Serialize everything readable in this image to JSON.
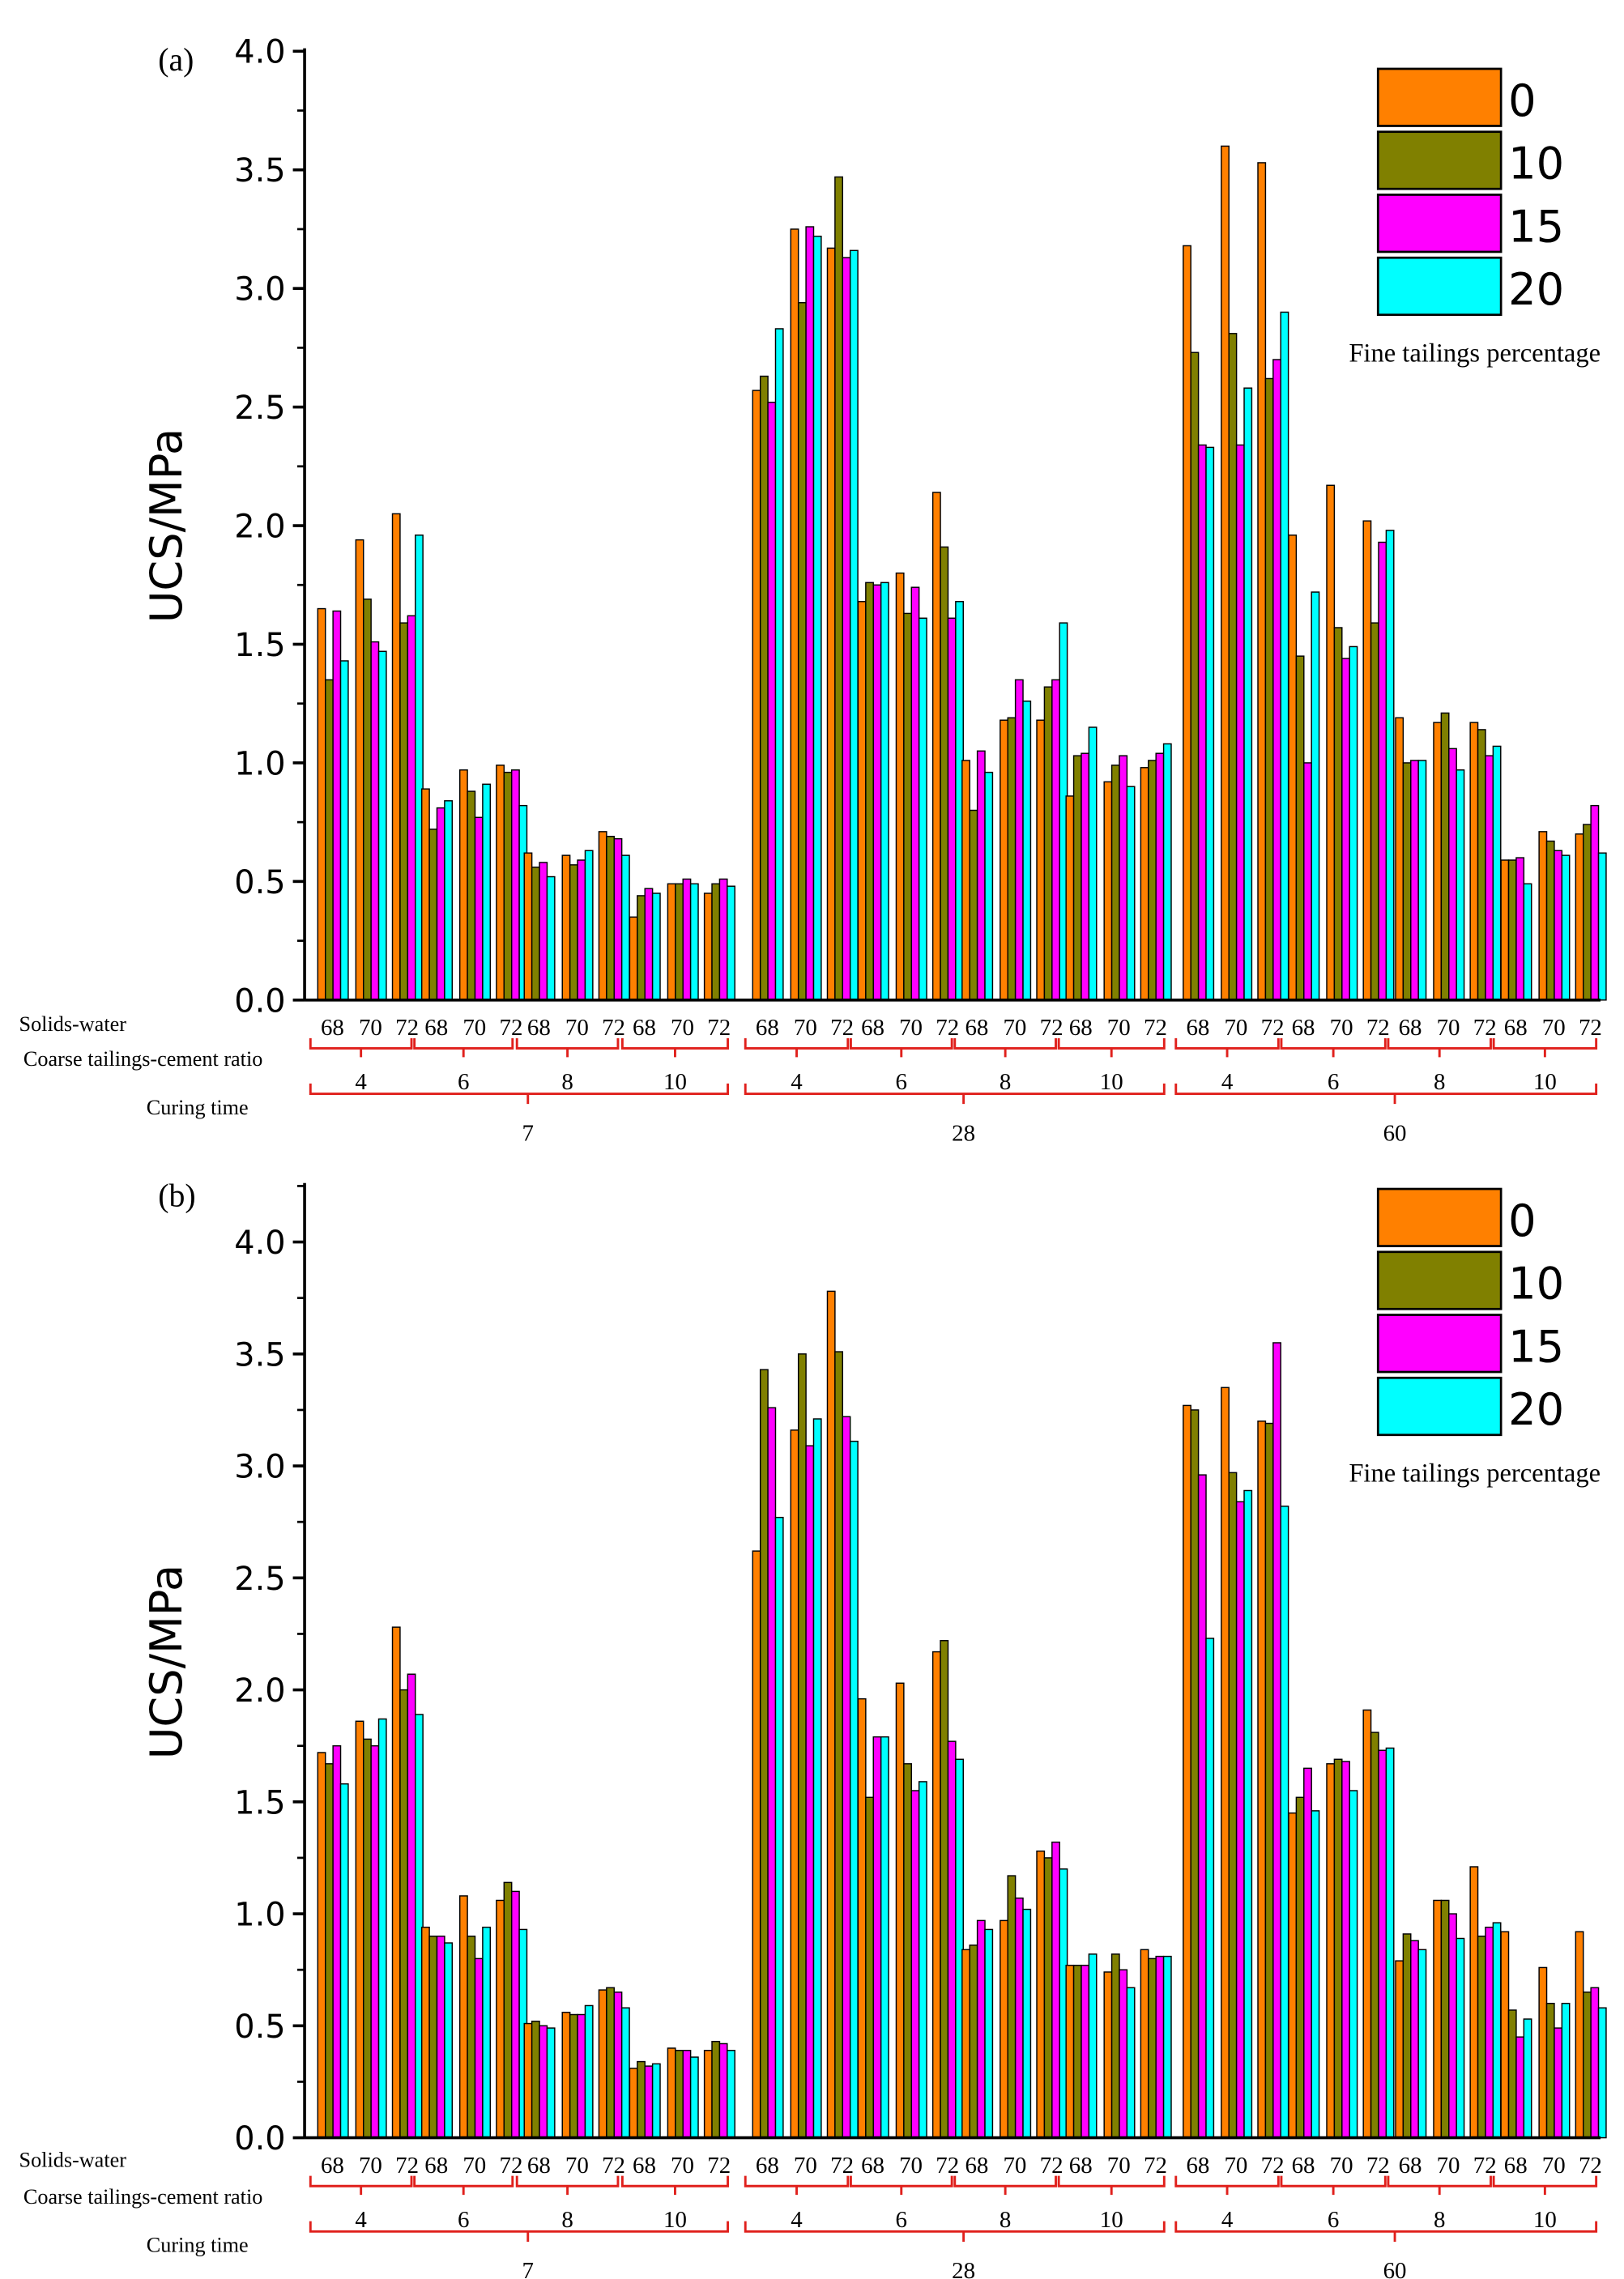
{
  "figure": {
    "shared_labels": {
      "solids_water_label": "Solids-water",
      "ratio_label": "Coarse tailings-cement ratio",
      "curing_label": "Curing time",
      "legend_caption": "Fine tailings percentage"
    },
    "x_hierarchy": {
      "curing_times": [
        "7",
        "28",
        "60"
      ],
      "ratios": [
        "4",
        "6",
        "8",
        "10"
      ],
      "solids_water": [
        "68",
        "70",
        "72"
      ]
    },
    "series_colors": {
      "0": "#FF8000",
      "10": "#808000",
      "15": "#FF00FF",
      "20": "#00FFFF"
    }
  },
  "chart_data": [
    {
      "type": "bar",
      "panel_label": "(a)",
      "ylabel": "UCS/MPa",
      "ylim": [
        0,
        4.0
      ],
      "yticks": [
        "0.0",
        "0.5",
        "1.0",
        "1.5",
        "2.0",
        "2.5",
        "3.0",
        "3.5",
        "4.0"
      ],
      "legend": {
        "title": "Fine tailings percentage",
        "entries": [
          "0",
          "10",
          "15",
          "20"
        ],
        "position": "top-right"
      },
      "grouping": "curing time > coarse tailings-cement ratio > solids-water",
      "series": [
        {
          "name": "0",
          "values": [
            1.65,
            1.94,
            2.05,
            0.89,
            0.97,
            0.99,
            0.62,
            0.61,
            0.71,
            0.35,
            0.49,
            0.45,
            2.57,
            3.25,
            3.17,
            1.68,
            1.8,
            2.14,
            1.01,
            1.18,
            1.18,
            0.86,
            0.92,
            0.98,
            3.18,
            3.6,
            3.53,
            1.96,
            2.17,
            2.02,
            1.19,
            1.17,
            1.17,
            0.59,
            0.71,
            0.7
          ]
        },
        {
          "name": "10",
          "values": [
            1.35,
            1.69,
            1.59,
            0.72,
            0.88,
            0.96,
            0.56,
            0.57,
            0.69,
            0.44,
            0.49,
            0.49,
            2.63,
            2.94,
            3.47,
            1.76,
            1.63,
            1.91,
            0.8,
            1.19,
            1.32,
            1.03,
            0.99,
            1.01,
            2.73,
            2.81,
            2.62,
            1.45,
            1.57,
            1.59,
            1.0,
            1.21,
            1.14,
            0.59,
            0.67,
            0.74
          ]
        },
        {
          "name": "15",
          "values": [
            1.64,
            1.51,
            1.62,
            0.81,
            0.77,
            0.97,
            0.58,
            0.59,
            0.68,
            0.47,
            0.51,
            0.51,
            2.52,
            3.26,
            3.13,
            1.75,
            1.74,
            1.61,
            1.05,
            1.35,
            1.35,
            1.04,
            1.03,
            1.04,
            2.34,
            2.34,
            2.7,
            1.0,
            1.44,
            1.93,
            1.01,
            1.06,
            1.03,
            0.6,
            0.63,
            0.82
          ]
        },
        {
          "name": "20",
          "values": [
            1.43,
            1.47,
            1.96,
            0.84,
            0.91,
            0.82,
            0.52,
            0.63,
            0.61,
            0.45,
            0.49,
            0.48,
            2.83,
            3.22,
            3.16,
            1.76,
            1.61,
            1.68,
            0.96,
            1.26,
            1.59,
            1.15,
            0.9,
            1.08,
            2.33,
            2.58,
            2.9,
            1.72,
            1.49,
            1.98,
            1.01,
            0.97,
            1.07,
            0.49,
            0.61,
            0.62
          ]
        }
      ]
    },
    {
      "type": "bar",
      "panel_label": "(b)",
      "ylabel": "UCS/MPa",
      "ylim": [
        0,
        4.25
      ],
      "yticks": [
        "0.0",
        "0.5",
        "1.0",
        "1.5",
        "2.0",
        "2.5",
        "3.0",
        "3.5",
        "4.0"
      ],
      "legend": {
        "title": "Fine tailings percentage",
        "entries": [
          "0",
          "10",
          "15",
          "20"
        ],
        "position": "top-right"
      },
      "grouping": "curing time > coarse tailings-cement ratio > solids-water",
      "series": [
        {
          "name": "0",
          "values": [
            1.72,
            1.86,
            2.28,
            0.94,
            1.08,
            1.06,
            0.51,
            0.56,
            0.66,
            0.31,
            0.4,
            0.39,
            2.62,
            3.16,
            3.78,
            1.96,
            2.03,
            2.17,
            0.84,
            0.97,
            1.28,
            0.77,
            0.74,
            0.84,
            3.27,
            3.35,
            3.2,
            1.45,
            1.67,
            1.91,
            0.79,
            1.06,
            1.21,
            0.92,
            0.76,
            0.92
          ]
        },
        {
          "name": "10",
          "values": [
            1.67,
            1.78,
            2.0,
            0.9,
            0.9,
            1.14,
            0.52,
            0.55,
            0.67,
            0.34,
            0.39,
            0.43,
            3.43,
            3.5,
            3.51,
            1.52,
            1.67,
            2.22,
            0.86,
            1.17,
            1.25,
            0.77,
            0.82,
            0.8,
            3.25,
            2.97,
            3.19,
            1.52,
            1.69,
            1.81,
            0.91,
            1.06,
            0.9,
            0.57,
            0.6,
            0.65
          ]
        },
        {
          "name": "15",
          "values": [
            1.75,
            1.75,
            2.07,
            0.9,
            0.8,
            1.1,
            0.5,
            0.55,
            0.65,
            0.32,
            0.39,
            0.42,
            3.26,
            3.09,
            3.22,
            1.79,
            1.55,
            1.77,
            0.97,
            1.07,
            1.32,
            0.77,
            0.75,
            0.81,
            2.96,
            2.84,
            3.55,
            1.65,
            1.68,
            1.73,
            0.88,
            1.0,
            0.94,
            0.45,
            0.49,
            0.67
          ]
        },
        {
          "name": "20",
          "values": [
            1.58,
            1.87,
            1.89,
            0.87,
            0.94,
            0.93,
            0.49,
            0.59,
            0.58,
            0.33,
            0.36,
            0.39,
            2.77,
            3.21,
            3.11,
            1.79,
            1.59,
            1.69,
            0.93,
            1.02,
            1.2,
            0.82,
            0.67,
            0.81,
            2.23,
            2.89,
            2.82,
            1.46,
            1.55,
            1.74,
            0.84,
            0.89,
            0.96,
            0.53,
            0.6,
            0.58
          ]
        }
      ]
    }
  ]
}
